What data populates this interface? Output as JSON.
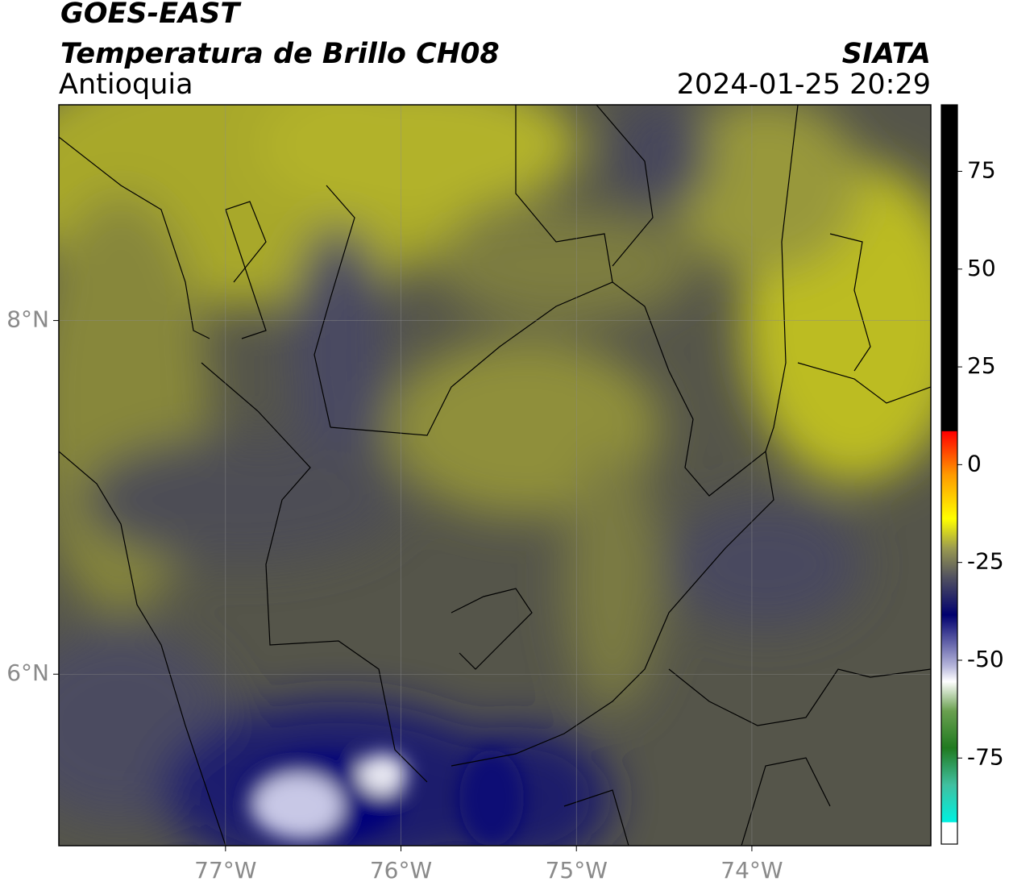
{
  "header": {
    "title": "GOES-EAST",
    "subtitle": "Temperatura de Brillo CH08",
    "region": "Antioquia",
    "source": "SIATA",
    "timestamp": "2024-01-25 20:29"
  },
  "map": {
    "xlim": [
      -77.95,
      -72.98
    ],
    "ylim": [
      5.03,
      9.22
    ],
    "xticks": [
      {
        "value": -77,
        "label": "77°W"
      },
      {
        "value": -76,
        "label": "76°W"
      },
      {
        "value": -75,
        "label": "75°W"
      },
      {
        "value": -74,
        "label": "74°W"
      }
    ],
    "yticks": [
      {
        "value": 8,
        "label": "8°N"
      },
      {
        "value": 6,
        "label": "6°N"
      }
    ],
    "grid": true
  },
  "colorbar": {
    "lim": [
      -97,
      92
    ],
    "ticks": [
      -75,
      -50,
      -25,
      0,
      25,
      50,
      75
    ]
  }
}
